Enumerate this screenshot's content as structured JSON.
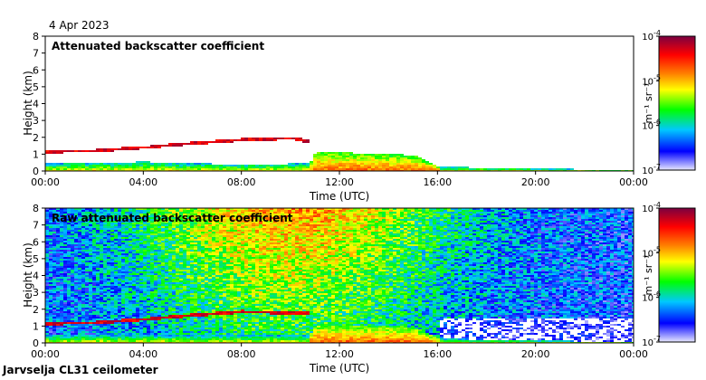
{
  "date_label": "4 Apr 2023",
  "station_label": "Jarvselja CL31 ceilometer",
  "chart_data": [
    {
      "type": "heatmap",
      "title": "Attenuated backscatter coefficient",
      "xlabel": "Time (UTC)",
      "ylabel": "Height (km)",
      "x_ticks": [
        "00:00",
        "04:00",
        "08:00",
        "12:00",
        "16:00",
        "20:00",
        "00:00"
      ],
      "x_range_hours": [
        0,
        24
      ],
      "y_ticks": [
        0,
        1,
        2,
        3,
        4,
        5,
        6,
        7,
        8
      ],
      "ylim_km": [
        0,
        8
      ],
      "colorbar": {
        "scale": "log",
        "label": "m⁻¹ sr⁻¹",
        "ticks": [
          {
            "base": "10",
            "exp": "-7"
          },
          {
            "base": "10",
            "exp": "-6"
          },
          {
            "base": "10",
            "exp": "-5"
          },
          {
            "base": "10",
            "exp": "-4"
          }
        ],
        "colors": [
          "#e8e8ff",
          "#0000ff",
          "#00c8ff",
          "#00ff00",
          "#ffff00",
          "#ff8000",
          "#ff0000",
          "#7a0040"
        ]
      },
      "features": {
        "cloud_layer_km": [
          [
            0.0,
            1.2
          ],
          [
            2.0,
            1.25
          ],
          [
            4.0,
            1.45
          ],
          [
            6.0,
            1.7
          ],
          [
            8.0,
            1.9
          ],
          [
            10.0,
            2.0
          ],
          [
            10.7,
            1.8
          ]
        ],
        "boundary_layer_top_km": [
          [
            0,
            0.5
          ],
          [
            2,
            0.55
          ],
          [
            4,
            0.6
          ],
          [
            6,
            0.5
          ],
          [
            8,
            0.45
          ],
          [
            10.7,
            0.5
          ],
          [
            11,
            1.2
          ],
          [
            13,
            1.1
          ],
          [
            15,
            1.0
          ],
          [
            16,
            0.3
          ],
          [
            24,
            0.1
          ]
        ]
      }
    },
    {
      "type": "heatmap",
      "title": "Raw attenuated backscatter coefficient",
      "xlabel": "Time (UTC)",
      "ylabel": "Height (km)",
      "x_ticks": [
        "00:00",
        "04:00",
        "08:00",
        "12:00",
        "16:00",
        "20:00",
        "00:00"
      ],
      "x_range_hours": [
        0,
        24
      ],
      "y_ticks": [
        0,
        1,
        2,
        3,
        4,
        5,
        6,
        7,
        8
      ],
      "ylim_km": [
        0,
        8
      ],
      "colorbar": {
        "scale": "log",
        "label": "m⁻¹ sr⁻¹",
        "ticks": [
          {
            "base": "10",
            "exp": "-7"
          },
          {
            "base": "10",
            "exp": "-6"
          },
          {
            "base": "10",
            "exp": "-5"
          },
          {
            "base": "10",
            "exp": "-4"
          }
        ],
        "colors": [
          "#e8e8ff",
          "#0000ff",
          "#00c8ff",
          "#00ff00",
          "#ffff00",
          "#ff8000",
          "#ff0000",
          "#7a0040"
        ]
      },
      "features": {
        "noise_peak_hour": 10,
        "cloud_layer_km": [
          [
            0.0,
            1.2
          ],
          [
            2.0,
            1.25
          ],
          [
            4.0,
            1.45
          ],
          [
            6.0,
            1.7
          ],
          [
            8.0,
            1.9
          ],
          [
            10.7,
            1.8
          ]
        ],
        "boundary_layer_top_km": [
          [
            0,
            0.5
          ],
          [
            10.7,
            0.5
          ],
          [
            11,
            1.2
          ],
          [
            15,
            1.0
          ],
          [
            16,
            0.3
          ],
          [
            24,
            0.1
          ]
        ]
      }
    }
  ]
}
